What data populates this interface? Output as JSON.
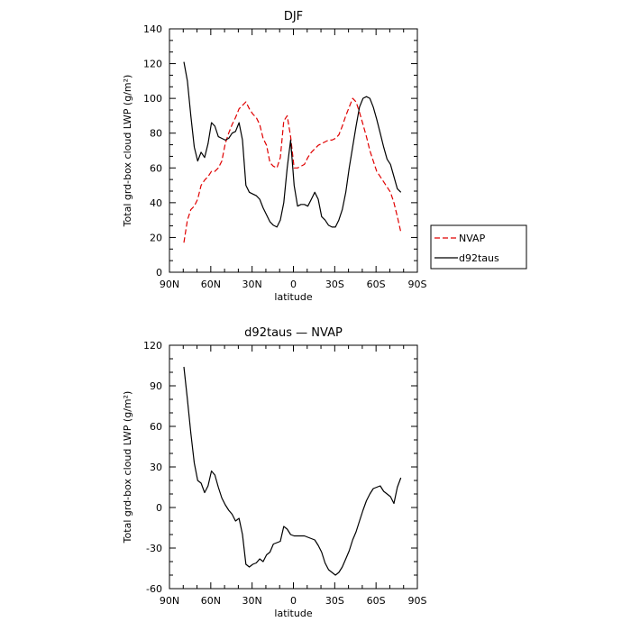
{
  "chart_data": [
    {
      "type": "line",
      "title": "DJF",
      "xlabel": "latitude",
      "ylabel": "Total grd-box cloud LWP (g/m²)",
      "xlim": [
        90,
        -90
      ],
      "ylim": [
        0,
        140
      ],
      "xticks": [
        90,
        60,
        30,
        0,
        -30,
        -60,
        -90
      ],
      "xtick_labels": [
        "90N",
        "60N",
        "30N",
        "0",
        "30S",
        "60S",
        "90S"
      ],
      "yticks": [
        0,
        20,
        40,
        60,
        80,
        100,
        120,
        140
      ],
      "grid": false,
      "legend": "right",
      "series": [
        {
          "name": "NVAP",
          "color": "#e00000",
          "dash": "dashed",
          "x": [
            79.5,
            77,
            74.5,
            72,
            69.5,
            67,
            64.5,
            62,
            59.5,
            57,
            54.5,
            52,
            49.5,
            47,
            44.5,
            42,
            39.5,
            37,
            34.5,
            32,
            29.5,
            27,
            24.5,
            22,
            19.5,
            17,
            14.5,
            12,
            9.5,
            7,
            4.5,
            2,
            -0.5,
            -3,
            -5.5,
            -8,
            -10.5,
            -13,
            -15.5,
            -18,
            -20.5,
            -23,
            -25.5,
            -28,
            -30.5,
            -33,
            -35.5,
            -38,
            -40.5,
            -43,
            -45.5,
            -48,
            -50.5,
            -53,
            -55.5,
            -58,
            -60.5,
            -63,
            -65.5,
            -68,
            -70.5,
            -73,
            -75.5,
            -78
          ],
          "values": [
            17,
            30,
            36,
            38,
            42,
            50,
            53,
            55,
            58,
            58,
            60,
            64,
            74,
            80,
            85,
            89,
            94,
            96,
            98,
            94,
            91,
            89,
            85,
            77,
            73,
            63,
            61,
            60,
            66,
            87,
            90,
            78,
            60,
            60,
            61,
            62,
            66,
            69,
            71,
            73,
            74,
            75,
            76,
            76,
            77,
            79,
            84,
            90,
            95,
            100,
            98,
            92,
            85,
            78,
            70,
            64,
            58,
            55,
            52,
            49,
            46,
            40,
            32,
            23
          ]
        },
        {
          "name": "d92taus",
          "color": "#000000",
          "dash": "solid",
          "x": [
            79.5,
            77,
            74.5,
            72,
            69.5,
            67,
            64.5,
            62,
            59.5,
            57,
            54.5,
            52,
            49.5,
            47,
            44.5,
            42,
            39.5,
            37,
            34.5,
            32,
            29.5,
            27,
            24.5,
            22,
            19.5,
            17,
            14.5,
            12,
            9.5,
            7,
            4.5,
            2,
            -0.5,
            -3,
            -5.5,
            -8,
            -10.5,
            -13,
            -15.5,
            -18,
            -20.5,
            -23,
            -25.5,
            -28,
            -30.5,
            -33,
            -35.5,
            -38,
            -40.5,
            -43,
            -45.5,
            -48,
            -50.5,
            -53,
            -55.5,
            -58,
            -60.5,
            -63,
            -65.5,
            -68,
            -70.5,
            -73,
            -75.5,
            -78
          ],
          "values": [
            121,
            110,
            90,
            72,
            64,
            69,
            66,
            74,
            86,
            84,
            78,
            77,
            76,
            77,
            80,
            81,
            86,
            76,
            50,
            46,
            45,
            44,
            42,
            37,
            33,
            29,
            27,
            26,
            30,
            40,
            60,
            76,
            50,
            38,
            39,
            39,
            38,
            42,
            46,
            42,
            32,
            30,
            27,
            26,
            26,
            30,
            36,
            46,
            60,
            72,
            84,
            95,
            100,
            101,
            100,
            95,
            88,
            80,
            72,
            65,
            62,
            55,
            48,
            46
          ]
        }
      ]
    },
    {
      "type": "line",
      "title": "d92taus — NVAP",
      "xlabel": "latitude",
      "ylabel": "Total grd-box cloud LWP (g/m²)",
      "xlim": [
        90,
        -90
      ],
      "ylim": [
        -60,
        120
      ],
      "xticks": [
        90,
        60,
        30,
        0,
        -30,
        -60,
        -90
      ],
      "xtick_labels": [
        "90N",
        "60N",
        "30N",
        "0",
        "30S",
        "60S",
        "90S"
      ],
      "yticks": [
        -60,
        -30,
        0,
        30,
        60,
        90,
        120
      ],
      "grid": false,
      "series": [
        {
          "color": "#000000",
          "dash": "solid",
          "x": [
            79.5,
            77,
            74.5,
            72,
            69.5,
            67,
            64.5,
            62,
            59.5,
            57,
            54.5,
            52,
            49.5,
            47,
            44.5,
            42,
            39.5,
            37,
            34.5,
            32,
            29.5,
            27,
            24.5,
            22,
            19.5,
            17,
            14.5,
            12,
            9.5,
            7,
            4.5,
            2,
            -0.5,
            -3,
            -5.5,
            -8,
            -10.5,
            -13,
            -15.5,
            -18,
            -20.5,
            -23,
            -25.5,
            -28,
            -30.5,
            -33,
            -35.5,
            -38,
            -40.5,
            -43,
            -45.5,
            -48,
            -50.5,
            -53,
            -55.5,
            -58,
            -60.5,
            -63,
            -65.5,
            -68,
            -70.5,
            -73,
            -75.5,
            -78
          ],
          "values": [
            104,
            80,
            55,
            33,
            20,
            18,
            11,
            16,
            27,
            24,
            15,
            7,
            2,
            -2,
            -5,
            -10,
            -8,
            -20,
            -42,
            -44,
            -42,
            -41,
            -38,
            -40,
            -35,
            -33,
            -27,
            -26,
            -25,
            -14,
            -16,
            -20,
            -21,
            -21,
            -21,
            -21,
            -22,
            -23,
            -24,
            -28,
            -33,
            -41,
            -46,
            -48,
            -50,
            -48,
            -44,
            -38,
            -32,
            -24,
            -18,
            -10,
            -2,
            5,
            10,
            14,
            15,
            16,
            12,
            10,
            8,
            3,
            15,
            22
          ]
        }
      ]
    }
  ]
}
